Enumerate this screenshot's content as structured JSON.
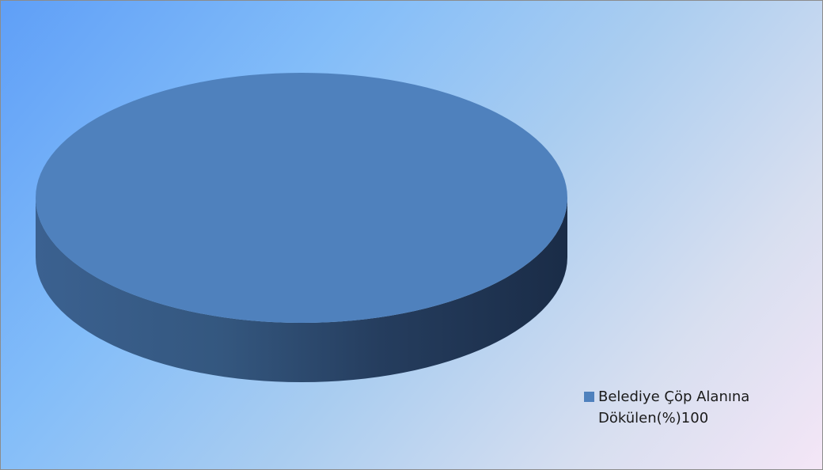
{
  "chart_data": {
    "type": "pie",
    "style": "3d",
    "title": "",
    "slices": [
      {
        "label": "Belediye Çöp Alanına\nDökülen(%)100",
        "value": 100
      }
    ],
    "legend_position": "bottom-right",
    "colors": {
      "slice_top": "#4f81bd",
      "background_start": "#5f9ff7",
      "background_end": "#f4e6f6"
    }
  }
}
